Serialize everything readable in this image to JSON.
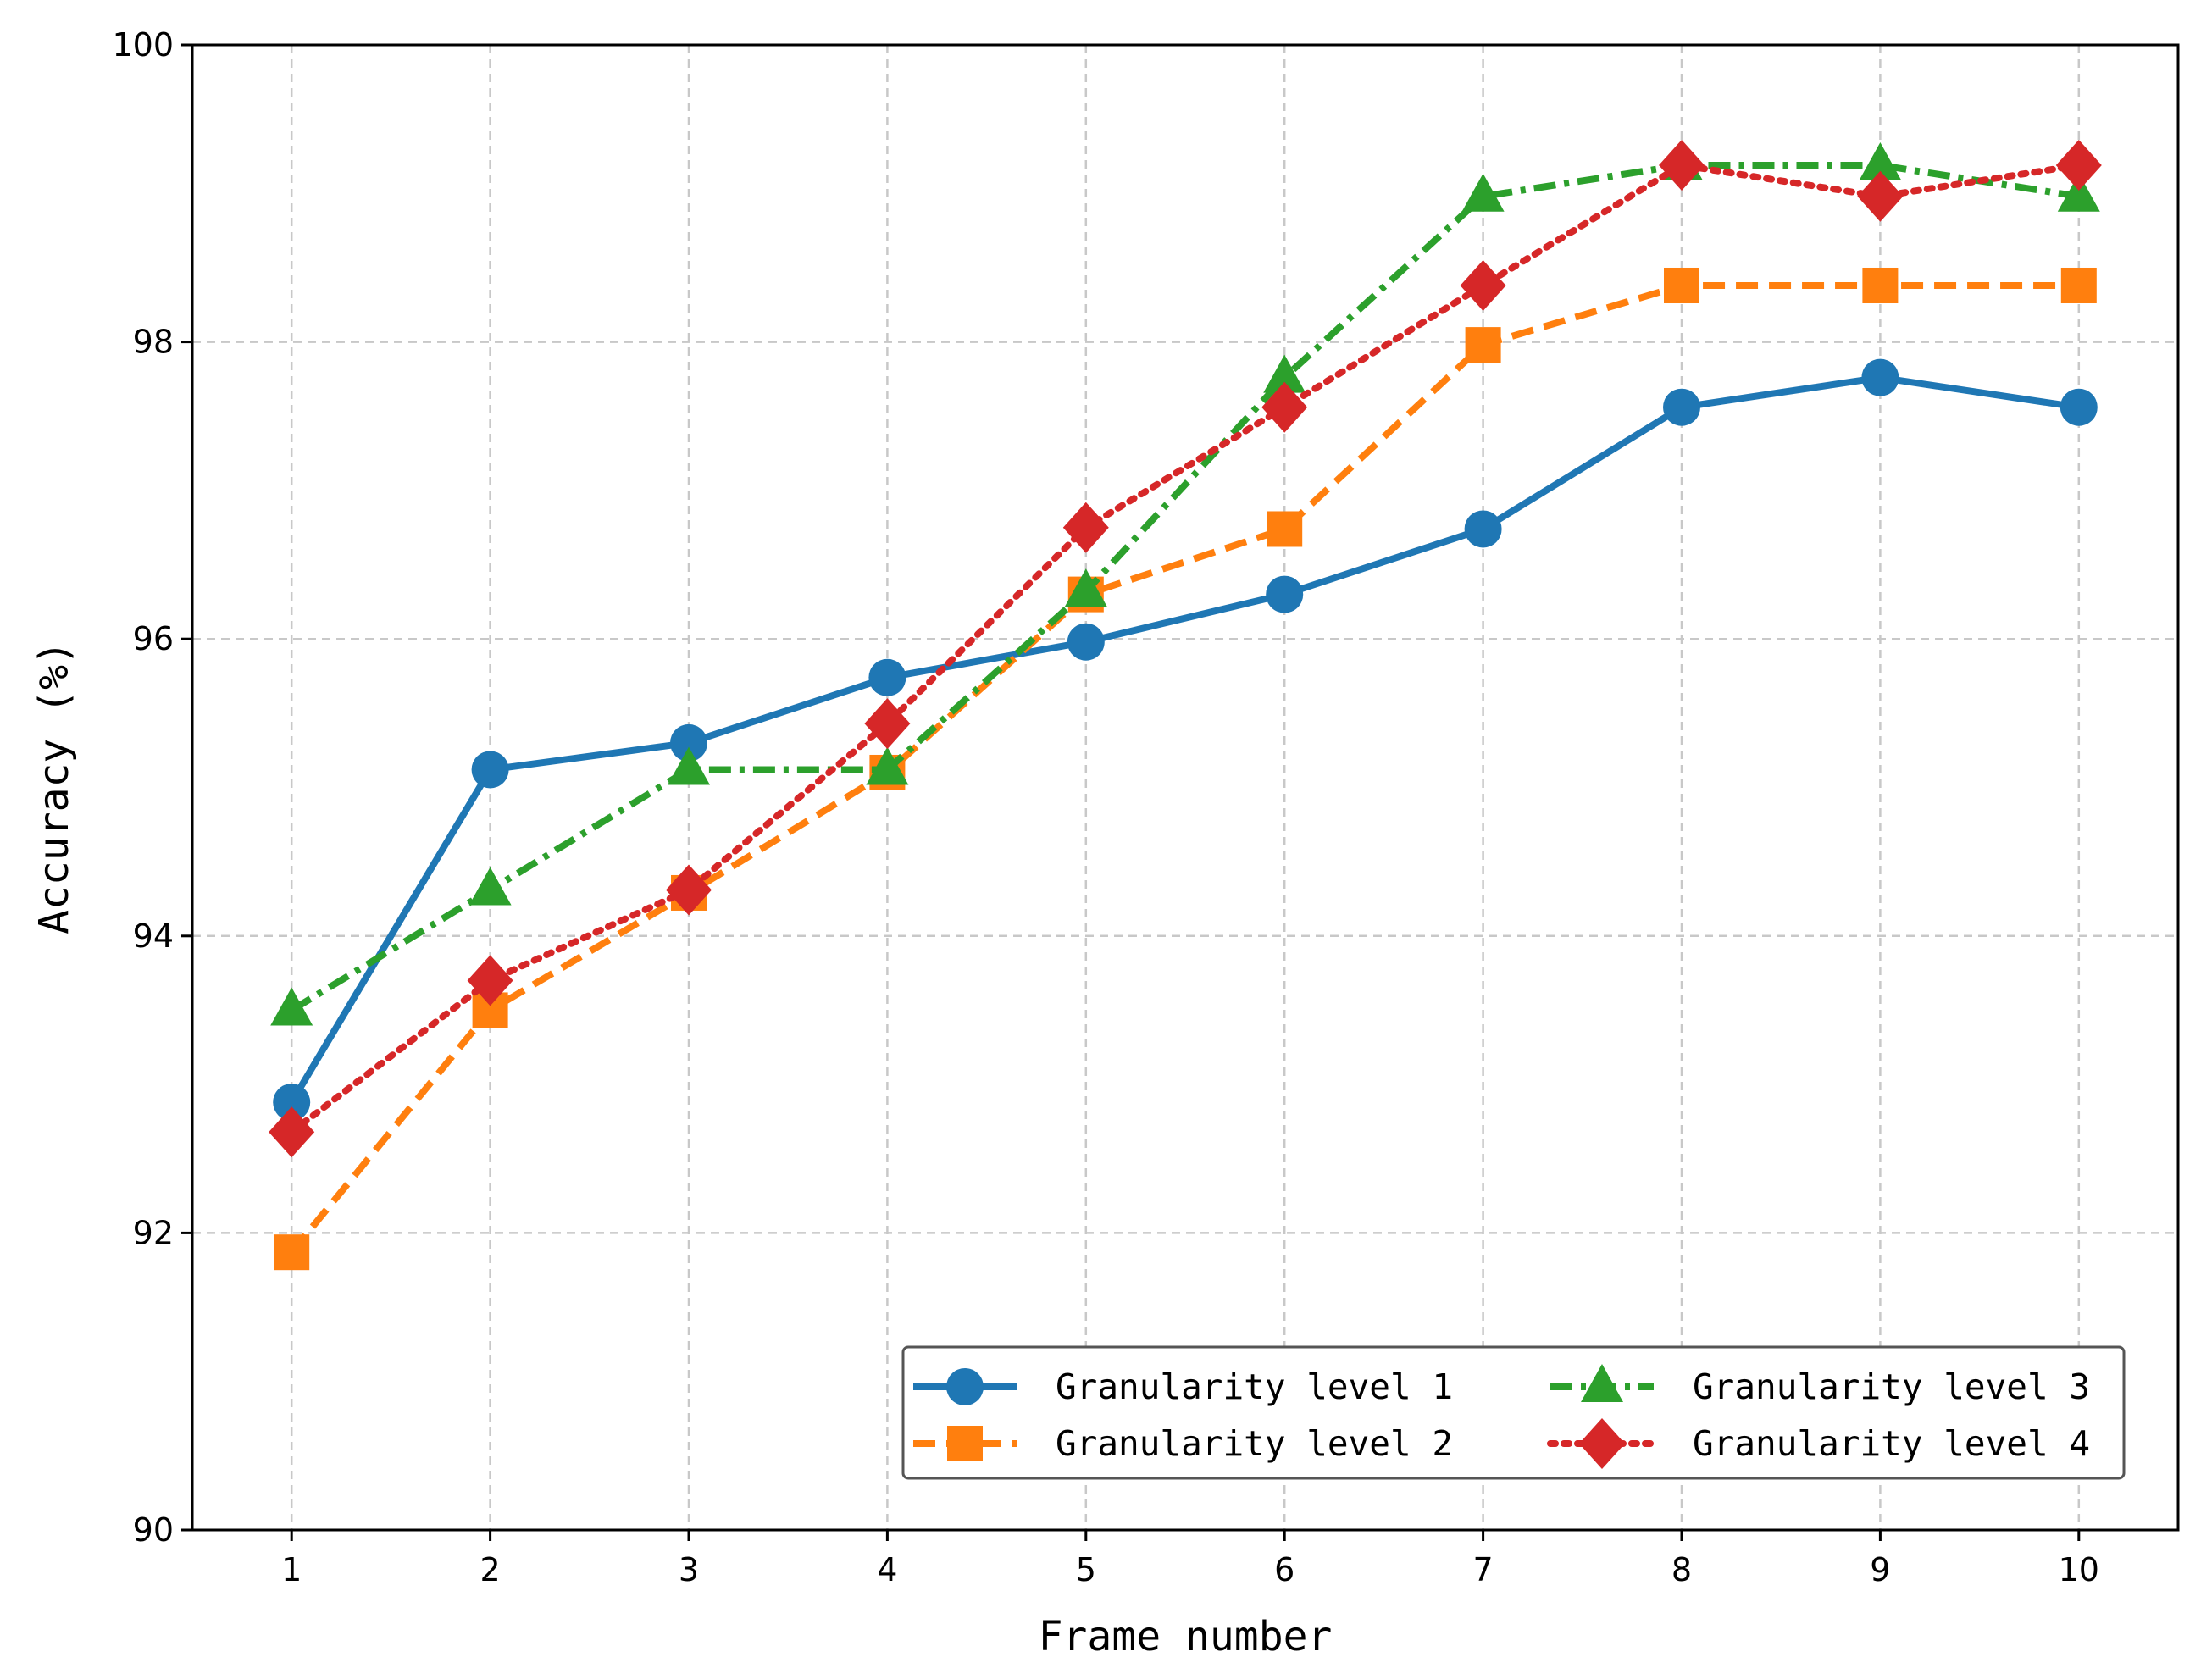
{
  "chart_data": {
    "type": "line",
    "title": "",
    "xlabel": "Frame number",
    "ylabel": "Accuracy (%)",
    "x": [
      1,
      2,
      3,
      4,
      5,
      6,
      7,
      8,
      9,
      10
    ],
    "xticks": [
      "1",
      "2",
      "3",
      "4",
      "5",
      "6",
      "7",
      "8",
      "9",
      "10"
    ],
    "yticks": [
      "90",
      "92",
      "94",
      "96",
      "98",
      "100"
    ],
    "xlim": [
      0.5,
      10.5
    ],
    "ylim": [
      90,
      100
    ],
    "grid": true,
    "legend_position": "lower-right",
    "series": [
      {
        "name": "Granularity level 1",
        "color": "#1f77b4",
        "marker": "circle",
        "linestyle": "solid",
        "values": [
          92.88,
          95.12,
          95.3,
          95.74,
          95.98,
          96.3,
          96.74,
          97.56,
          97.76,
          97.56
        ]
      },
      {
        "name": "Granularity level 2",
        "color": "#ff7f0e",
        "marker": "square",
        "linestyle": "dashed",
        "values": [
          91.87,
          93.5,
          94.29,
          95.1,
          96.3,
          96.74,
          97.98,
          98.38,
          98.38,
          98.38
        ]
      },
      {
        "name": "Granularity level 3",
        "color": "#2ca02c",
        "marker": "triangle",
        "linestyle": "dashdot",
        "values": [
          93.5,
          94.31,
          95.12,
          95.12,
          96.32,
          97.76,
          98.98,
          99.19,
          99.19,
          98.98
        ]
      },
      {
        "name": "Granularity level 4",
        "color": "#d62728",
        "marker": "diamond",
        "linestyle": "dotted",
        "values": [
          92.68,
          93.7,
          94.31,
          95.43,
          96.75,
          97.56,
          98.38,
          99.19,
          98.98,
          99.19
        ]
      }
    ]
  }
}
